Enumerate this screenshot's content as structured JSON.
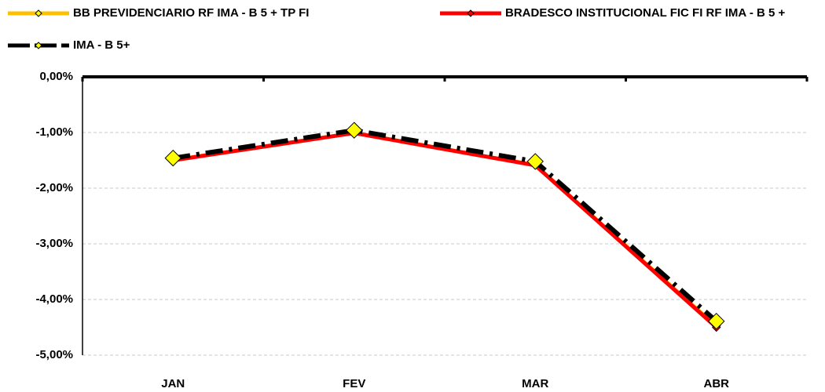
{
  "chart_data": {
    "type": "line",
    "categories": [
      "JAN",
      "FEV",
      "MAR",
      "ABR"
    ],
    "series": [
      {
        "name": "BB PREVIDENCIARIO RF IMA - B 5 + TP FI",
        "color": "#ffc000",
        "marker_color": "#ffff00",
        "values": [
          -1.49,
          -1.0,
          -1.58,
          -4.47
        ]
      },
      {
        "name": "BRADESCO INSTITUCIONAL FIC FI RF IMA - B 5 +",
        "color": "#ff0000",
        "marker_color": "#ff0000",
        "values": [
          -1.5,
          -1.01,
          -1.59,
          -4.5
        ]
      },
      {
        "name": "IMA - B 5+",
        "color": "#000000",
        "marker_color": "#ffff00",
        "line_style": "dash",
        "values": [
          -1.46,
          -0.96,
          -1.52,
          -4.39
        ]
      }
    ],
    "ylim": [
      -5,
      0
    ],
    "yticks": [
      {
        "value": 0,
        "label": "0,00%"
      },
      {
        "value": -1,
        "label": "-1,00%"
      },
      {
        "value": -2,
        "label": "-2,00%"
      },
      {
        "value": -3,
        "label": "-3,00%"
      },
      {
        "value": -4,
        "label": "-4,00%"
      },
      {
        "value": -5,
        "label": "-5,00%"
      }
    ],
    "grid": true
  }
}
